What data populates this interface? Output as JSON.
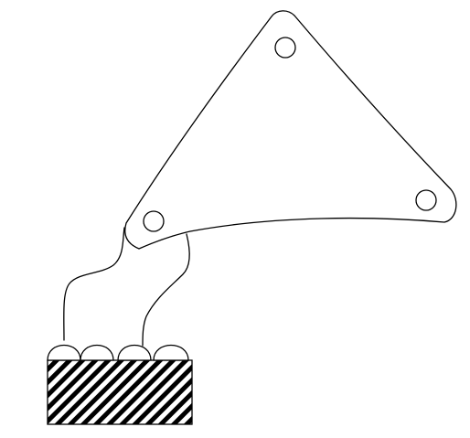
{
  "figure": {
    "description_free": true,
    "colors": {
      "line": "#000000",
      "background": "#ffffff",
      "hatch": "#000000"
    },
    "parts": {
      "triangular_plate": {
        "hole_count": 3
      },
      "connecting_wires": {
        "count": 2
      },
      "contact_bumps": {
        "count": 4
      },
      "base_block": {
        "fill": "diagonal-hatch"
      }
    }
  }
}
